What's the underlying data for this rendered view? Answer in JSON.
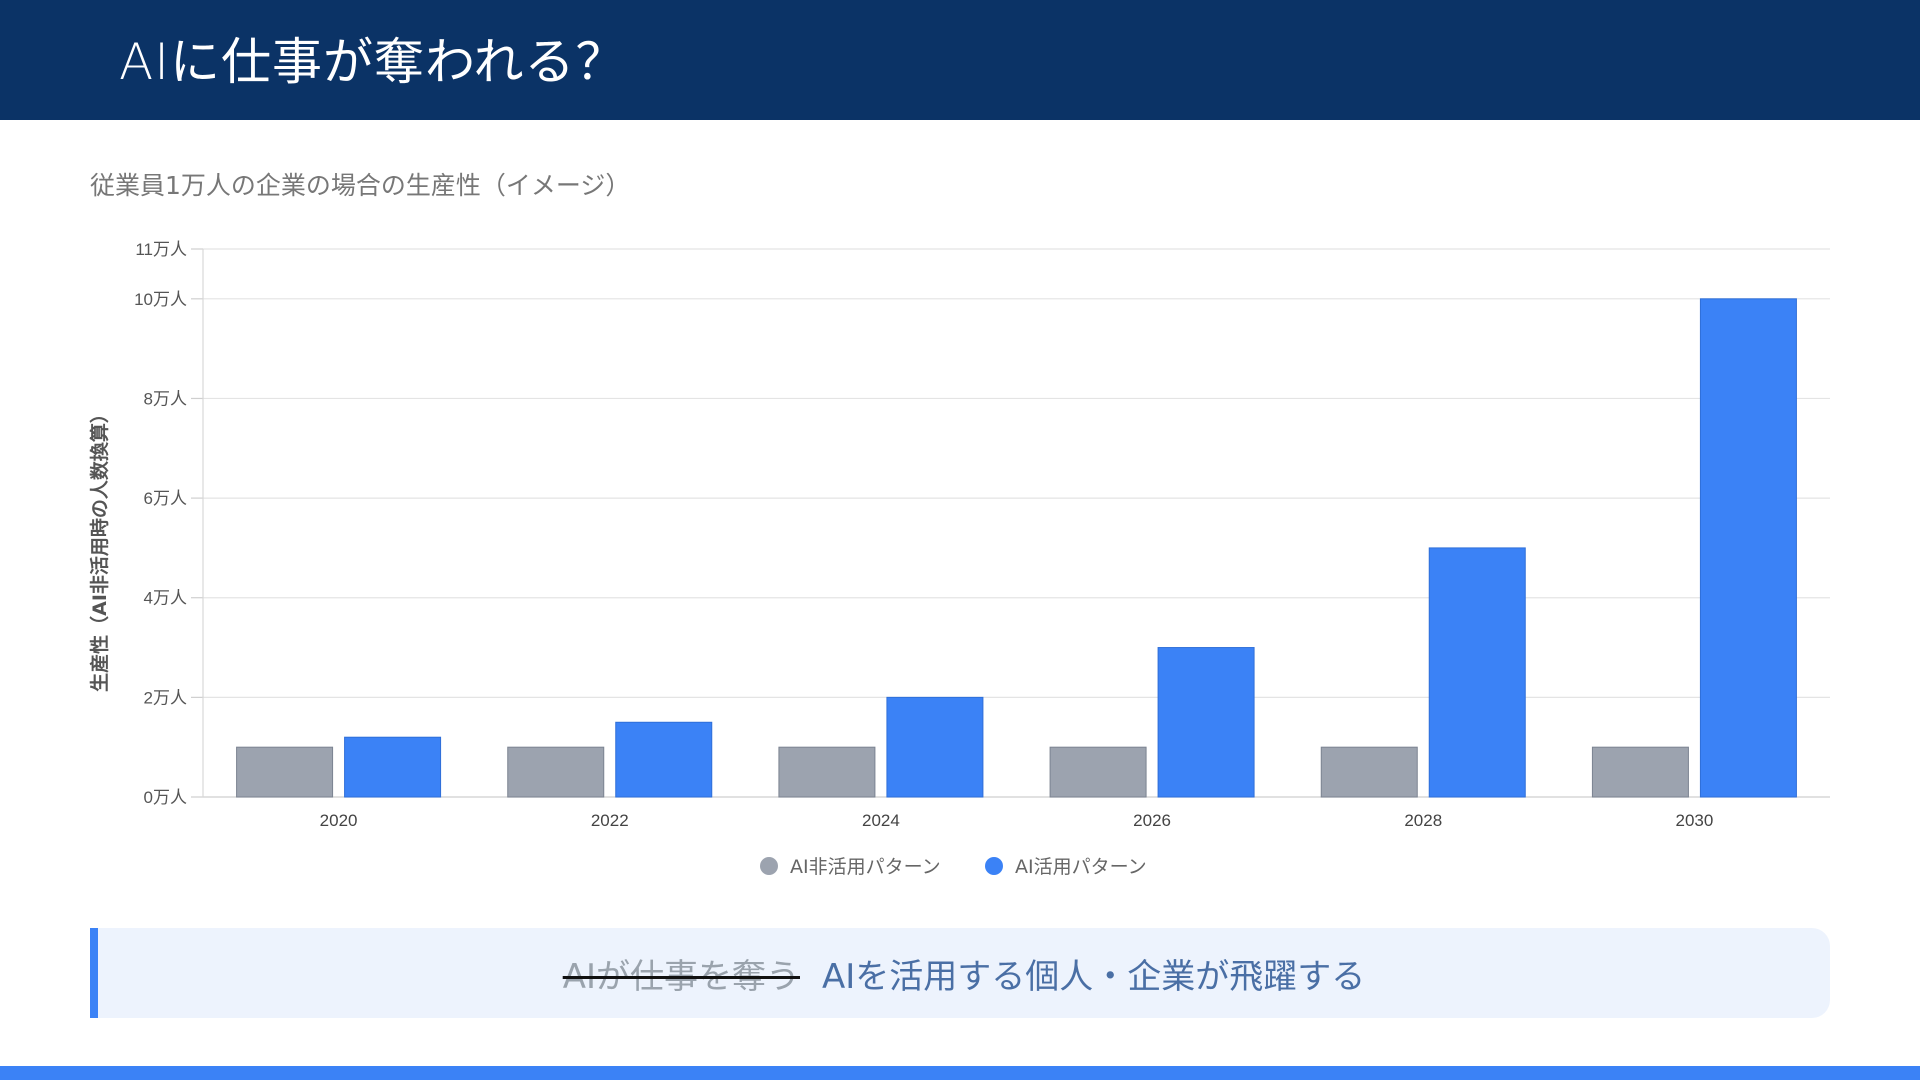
{
  "header": {
    "title": "AIに仕事が奪われる？"
  },
  "subtitle": "従業員1万人の企業の場合の生産性（イメージ）",
  "callout": {
    "struck_text": "AIが仕事を奪う",
    "emphasis_text": "AIを活用する個人・企業が飛躍する"
  },
  "colors": {
    "header_bg": "#0b3366",
    "series_non_ai": "#9ca3af",
    "series_ai": "#3b82f6",
    "callout_bg": "#edf3fd",
    "accent": "#3b82f6"
  },
  "chart_data": {
    "type": "bar",
    "categories": [
      "2020",
      "2022",
      "2024",
      "2026",
      "2028",
      "2030"
    ],
    "series": [
      {
        "name": "AI非活用パターン",
        "values": [
          1,
          1,
          1,
          1,
          1,
          1
        ]
      },
      {
        "name": "AI活用パターン",
        "values": [
          1.2,
          1.5,
          2,
          3,
          5,
          10
        ]
      }
    ],
    "ylabel": "生産性（AI非活用時の人数換算）",
    "ylim": [
      0,
      11
    ],
    "yticks": [
      0,
      2,
      4,
      6,
      8,
      10,
      11
    ],
    "ytick_labels": [
      "0万人",
      "2万人",
      "4万人",
      "6万人",
      "8万人",
      "10万人",
      "11万人"
    ],
    "grid": true,
    "legend_position": "bottom-center"
  }
}
